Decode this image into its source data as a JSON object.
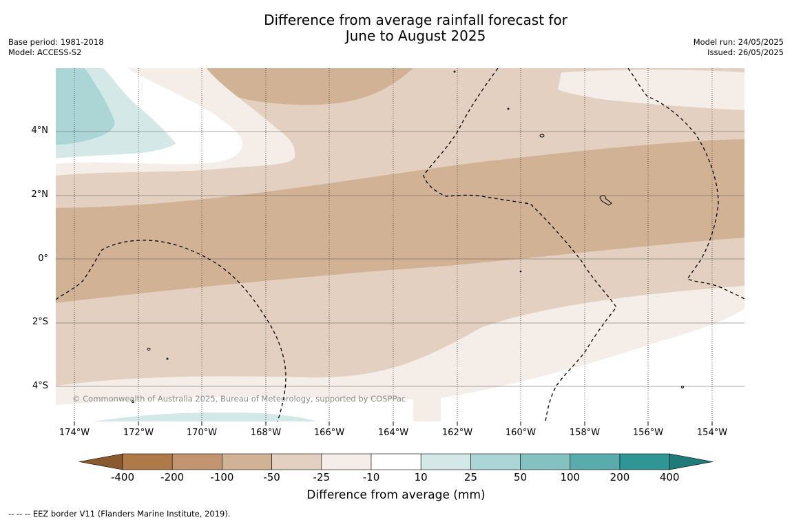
{
  "title": {
    "line1": "Difference from average rainfall forecast for",
    "line2": "June to August 2025"
  },
  "meta_left": {
    "base_period": "Base period: 1981-2018",
    "model": "Model: ACCESS-S2"
  },
  "meta_right": {
    "model_run": "Model run: 24/05/2025",
    "issued": "Issued: 26/05/2025"
  },
  "map": {
    "lat_labels": [
      "4°N",
      "2°N",
      "0°",
      "2°S",
      "4°S"
    ],
    "lon_labels": [
      "174°W",
      "172°W",
      "170°W",
      "168°W",
      "166°W",
      "164°W",
      "162°W",
      "160°W",
      "158°W",
      "156°W",
      "154°W"
    ],
    "copyright": "© Commonwealth of Australia 2025, Bureau of Meteorology, supported by COSPPac"
  },
  "colorbar": {
    "tick_labels": [
      "-400",
      "-200",
      "-100",
      "-50",
      "-25",
      "-10",
      "10",
      "25",
      "50",
      "100",
      "200",
      "400"
    ],
    "colors": [
      "#8a5a2e",
      "#b07a48",
      "#c39470",
      "#d2b295",
      "#e3d0c0",
      "#f4ede8",
      "#ffffff",
      "#d4e8e8",
      "#acd5d6",
      "#84c2c2",
      "#5aacac",
      "#2f9595",
      "#1f7a7a"
    ],
    "title": "Difference from average (mm)"
  },
  "footer": "--  --  -- EEZ border V11 (Flanders Marine Institute, 2019)."
}
